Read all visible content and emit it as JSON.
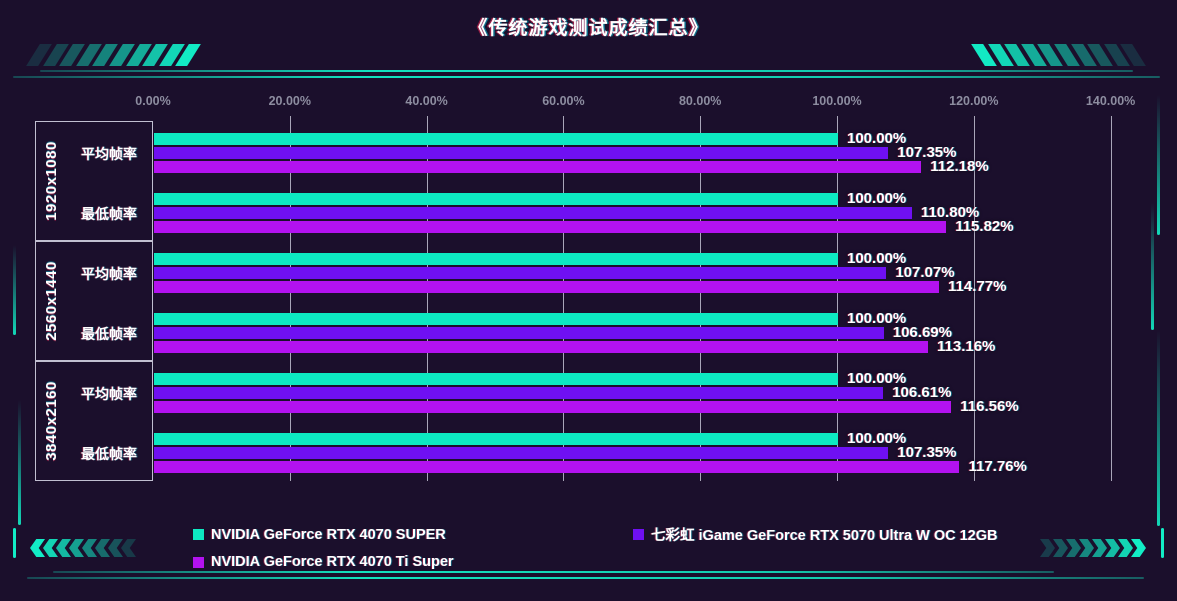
{
  "title": "《传统游戏测试成绩汇总》",
  "colors": {
    "background": "#1b0f2c",
    "accent_teal": "#12edc6",
    "series_teal": "#0de9c2",
    "series_violet": "#6f10f2",
    "series_magenta": "#b312f0",
    "grid": "#e1e1f0",
    "axis_text": "#8d8da0",
    "text": "#ffffff"
  },
  "chart_data": {
    "type": "bar",
    "orientation": "horizontal",
    "title": "《传统游戏测试成绩汇总》",
    "axis": {
      "unit": "%",
      "min": 0,
      "max": 140,
      "step": 20,
      "tick_values": [
        0,
        20,
        40,
        60,
        80,
        100,
        120,
        140
      ],
      "tick_labels": [
        "0.00%",
        "20.00%",
        "40.00%",
        "60.00%",
        "80.00%",
        "100.00%",
        "120.00%",
        "140.00%"
      ],
      "grid": true
    },
    "series": [
      {
        "name": "NVIDIA GeForce RTX 4070 SUPER",
        "color": "#0de9c2"
      },
      {
        "name": "七彩虹 iGame GeForce RTX 5070 Ultra W OC 12GB",
        "color": "#6f10f2"
      },
      {
        "name": "NVIDIA GeForce RTX 4070 Ti Super",
        "color": "#b312f0"
      }
    ],
    "groups": [
      {
        "resolution": "1920x1080",
        "rows": [
          {
            "label": "平均帧率",
            "values": [
              100.0,
              107.35,
              112.18
            ]
          },
          {
            "label": "最低帧率",
            "values": [
              100.0,
              110.8,
              115.82
            ]
          }
        ]
      },
      {
        "resolution": "2560x1440",
        "rows": [
          {
            "label": "平均帧率",
            "values": [
              100.0,
              107.07,
              114.77
            ]
          },
          {
            "label": "最低帧率",
            "values": [
              100.0,
              106.69,
              113.16
            ]
          }
        ]
      },
      {
        "resolution": "3840x2160",
        "rows": [
          {
            "label": "平均帧率",
            "values": [
              100.0,
              106.61,
              116.56
            ]
          },
          {
            "label": "最低帧率",
            "values": [
              100.0,
              107.35,
              117.76
            ]
          }
        ]
      }
    ],
    "value_label_format": "0.00%",
    "legend_position": "bottom"
  }
}
